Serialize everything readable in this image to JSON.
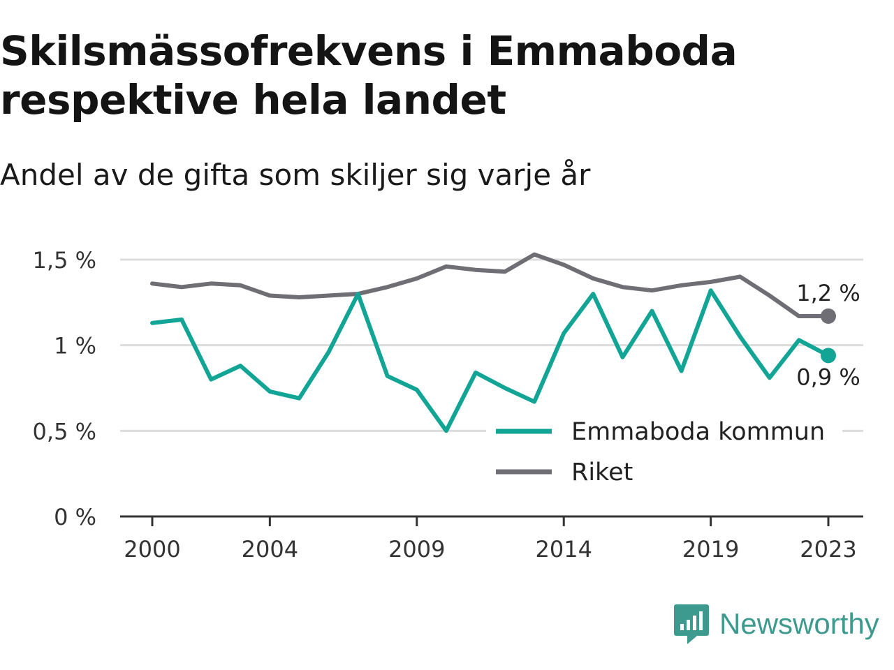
{
  "header": {
    "title": "Skilsmässofrekvens i Emmaboda respektive hela landet",
    "subtitle": "Andel av de gifta som skiljer sig varje år"
  },
  "brand": {
    "name": "Newsworthy",
    "icon": "newsworthy-logo-icon",
    "color": "#3c9a8e"
  },
  "chart_data": {
    "type": "line",
    "title": "Skilsmässofrekvens i Emmaboda respektive hela landet",
    "subtitle": "Andel av de gifta som skiljer sig varje år",
    "x": [
      2000,
      2001,
      2002,
      2003,
      2004,
      2005,
      2006,
      2007,
      2008,
      2009,
      2010,
      2011,
      2012,
      2013,
      2014,
      2015,
      2016,
      2017,
      2018,
      2019,
      2020,
      2021,
      2022,
      2023
    ],
    "x_ticks": [
      2000,
      2004,
      2009,
      2014,
      2019,
      2023
    ],
    "x_tick_labels": [
      "2000",
      "2004",
      "2009",
      "2014",
      "2019",
      "2023"
    ],
    "y_ticks": [
      0,
      0.5,
      1,
      1.5
    ],
    "y_tick_labels": [
      "0 %",
      "0,5 %",
      "1 %",
      "1,5 %"
    ],
    "ylim": [
      0,
      1.5
    ],
    "grid": true,
    "legend_position": "bottom-right",
    "series": [
      {
        "name": "Emmaboda kommun",
        "color": "#12a596",
        "values": [
          1.13,
          1.15,
          0.8,
          0.88,
          0.73,
          0.69,
          0.96,
          1.3,
          0.82,
          0.74,
          0.5,
          0.84,
          0.75,
          0.67,
          1.07,
          1.3,
          0.93,
          1.2,
          0.85,
          1.32,
          1.05,
          0.81,
          1.03,
          0.94
        ],
        "end_label": "0,9 %"
      },
      {
        "name": "Riket",
        "color": "#6f6e75",
        "values": [
          1.36,
          1.34,
          1.36,
          1.35,
          1.29,
          1.28,
          1.29,
          1.3,
          1.34,
          1.39,
          1.46,
          1.44,
          1.43,
          1.53,
          1.47,
          1.39,
          1.34,
          1.32,
          1.35,
          1.37,
          1.4,
          1.29,
          1.17,
          1.17
        ],
        "end_label": "1,2 %"
      }
    ]
  }
}
